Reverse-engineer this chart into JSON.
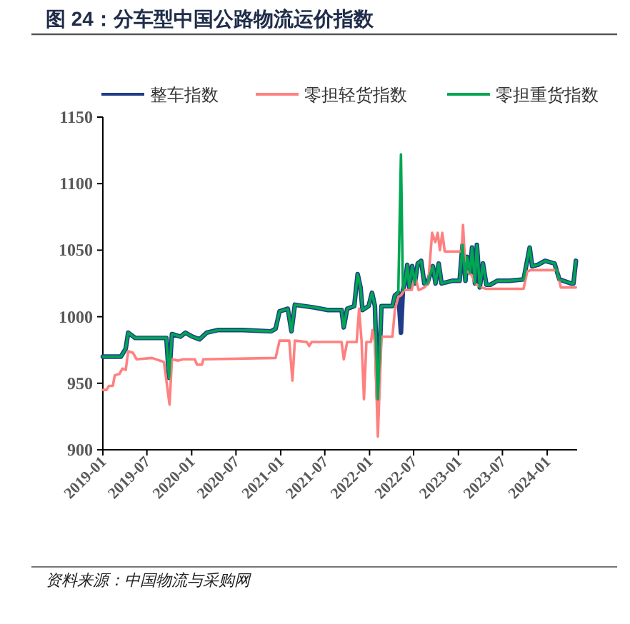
{
  "chart_data": {
    "type": "line",
    "title": "图 24：分车型中国公路物流运价指数",
    "annotations": [
      "资料来源：中国物流与采购网"
    ],
    "xlim": [
      "2019-01-01",
      "2024-05-03"
    ],
    "xticks": [
      "2019-01",
      "2019-07",
      "2020-01",
      "2020-07",
      "2021-01",
      "2021-07",
      "2022-01",
      "2022-07",
      "2023-01",
      "2023-07",
      "2024-01"
    ],
    "ylim": [
      900,
      1150
    ],
    "yticks": [
      900,
      950,
      1000,
      1050,
      1100,
      1150
    ],
    "grid": false,
    "legend": "top",
    "line_style": "solid",
    "marker": "none",
    "series": [
      {
        "name": "整车指数",
        "color": "#1f3c88",
        "x": [
          "2019-01-01",
          "2019-03-16",
          "2019-04-05",
          "2019-04-15",
          "2019-05-14",
          "2019-09-19",
          "2019-09-30",
          "2019-10-12",
          "2019-11-16",
          "2019-12-06",
          "2020-01-04",
          "2020-02-02",
          "2020-03-03",
          "2020-04-20",
          "2020-07-28",
          "2020-11-22",
          "2020-12-11",
          "2020-12-27",
          "2021-01-30",
          "2021-02-14",
          "2021-02-28",
          "2021-05-17",
          "2021-07-15",
          "2021-09-08",
          "2021-09-17",
          "2021-10-01",
          "2021-10-30",
          "2021-11-13",
          "2021-11-25",
          "2021-12-03",
          "2021-12-28",
          "2022-01-11",
          "2022-01-23",
          "2022-02-04",
          "2022-02-19",
          "2022-04-05",
          "2022-04-15",
          "2022-04-29",
          "2022-05-10",
          "2022-05-18",
          "2022-05-28",
          "2022-06-05",
          "2022-06-13",
          "2022-06-25",
          "2022-07-06",
          "2022-07-18",
          "2022-08-01",
          "2022-08-14",
          "2022-08-26",
          "2022-09-18",
          "2022-09-29",
          "2022-10-12",
          "2022-10-24",
          "2022-12-06",
          "2023-01-06",
          "2023-01-18",
          "2023-01-30",
          "2023-02-06",
          "2023-02-18",
          "2023-02-26",
          "2023-03-10",
          "2023-03-18",
          "2023-03-30",
          "2023-04-12",
          "2023-04-26",
          "2023-05-12",
          "2023-06-10",
          "2023-07-29",
          "2023-09-26",
          "2023-10-21",
          "2023-10-31",
          "2023-11-24",
          "2023-12-23",
          "2024-01-31",
          "2024-02-20",
          "2024-04-08",
          "2024-04-18",
          "2024-04-28"
        ],
        "values": [
          970,
          970,
          976,
          988,
          984,
          984,
          954,
          987,
          985,
          988,
          985,
          983,
          988,
          990,
          990,
          989,
          991,
          1004,
          1006,
          989,
          1009,
          1007,
          1005,
          1005,
          992,
          1006,
          1008,
          1032,
          1022,
          1005,
          1008,
          1018,
          1008,
          938,
          1008,
          1008,
          1016,
          1018,
          988,
          1020,
          1027,
          1039,
          1022,
          1038,
          1025,
          1040,
          1042,
          1025,
          1025,
          1038,
          1025,
          1040,
          1025,
          1027,
          1027,
          1054,
          1027,
          1045,
          1033,
          1052,
          1025,
          1054,
          1022,
          1040,
          1024,
          1024,
          1027,
          1027,
          1028,
          1052,
          1038,
          1039,
          1042,
          1040,
          1028,
          1025,
          1025,
          1042
        ]
      },
      {
        "name": "零担轻货指数",
        "color": "#ff8080",
        "x": [
          "2019-01-01",
          "2019-01-16",
          "2019-01-26",
          "2019-02-11",
          "2019-02-19",
          "2019-03-10",
          "2019-03-22",
          "2019-04-05",
          "2019-04-15",
          "2019-05-04",
          "2019-05-20",
          "2019-07-22",
          "2019-09-09",
          "2019-10-02",
          "2019-10-12",
          "2019-11-06",
          "2019-11-26",
          "2020-01-14",
          "2020-01-23",
          "2020-02-12",
          "2020-02-18",
          "2020-12-11",
          "2020-12-27",
          "2021-02-05",
          "2021-02-18",
          "2021-02-28",
          "2021-04-18",
          "2021-04-28",
          "2021-05-08",
          "2021-09-08",
          "2021-09-17",
          "2021-10-01",
          "2021-11-09",
          "2021-11-19",
          "2021-11-29",
          "2021-12-09",
          "2021-12-19",
          "2022-01-07",
          "2022-01-13",
          "2022-01-23",
          "2022-02-04",
          "2022-02-19",
          "2022-04-05",
          "2022-04-15",
          "2022-04-29",
          "2022-05-10",
          "2022-05-24",
          "2022-06-23",
          "2022-07-06",
          "2022-07-22",
          "2022-08-14",
          "2022-08-30",
          "2022-09-15",
          "2022-09-28",
          "2022-10-08",
          "2022-10-17",
          "2022-10-27",
          "2022-11-06",
          "2023-01-14",
          "2023-01-20",
          "2023-01-30",
          "2023-02-06",
          "2023-02-26",
          "2023-03-10",
          "2023-04-03",
          "2023-04-26",
          "2023-09-26",
          "2023-10-11",
          "2023-10-25",
          "2024-02-10",
          "2024-02-26",
          "2024-04-28"
        ],
        "values": [
          945,
          945,
          948,
          948,
          956,
          957,
          961,
          960,
          974,
          973,
          968,
          969,
          966,
          934,
          968,
          967,
          968,
          968,
          964,
          964,
          968,
          969,
          982,
          982,
          952,
          982,
          981,
          978,
          981,
          981,
          968,
          981,
          981,
          1006,
          982,
          938,
          981,
          981,
          990,
          981,
          910,
          985,
          985,
          1005,
          1015,
          1016,
          1020,
          1020,
          1031,
          1020,
          1022,
          1025,
          1063,
          1056,
          1063,
          1050,
          1063,
          1049,
          1049,
          1069,
          1036,
          1034,
          1031,
          1025,
          1022,
          1021,
          1021,
          1034,
          1035,
          1035,
          1022,
          1022
        ]
      },
      {
        "name": "零担重货指数",
        "color": "#00a651",
        "x": [
          "2019-01-01",
          "2019-03-16",
          "2019-04-05",
          "2019-04-15",
          "2019-05-14",
          "2019-09-19",
          "2019-09-30",
          "2019-10-12",
          "2019-11-16",
          "2019-12-06",
          "2020-01-04",
          "2020-02-02",
          "2020-03-03",
          "2020-04-20",
          "2020-07-28",
          "2020-11-22",
          "2020-12-11",
          "2020-12-27",
          "2021-01-30",
          "2021-02-14",
          "2021-02-28",
          "2021-05-17",
          "2021-07-15",
          "2021-09-08",
          "2021-09-17",
          "2021-10-01",
          "2021-10-30",
          "2021-11-13",
          "2021-11-25",
          "2021-12-03",
          "2021-12-28",
          "2022-01-11",
          "2022-01-23",
          "2022-02-04",
          "2022-02-19",
          "2022-04-05",
          "2022-04-15",
          "2022-04-29",
          "2022-05-10",
          "2022-05-18",
          "2022-05-28",
          "2022-06-05",
          "2022-06-13",
          "2022-06-25",
          "2022-07-06",
          "2022-07-18",
          "2022-08-01",
          "2022-08-14",
          "2022-08-26",
          "2022-09-18",
          "2022-09-29",
          "2022-10-12",
          "2022-10-24",
          "2022-12-06",
          "2023-01-06",
          "2023-01-18",
          "2023-01-30",
          "2023-02-06",
          "2023-02-18",
          "2023-02-26",
          "2023-03-10",
          "2023-03-18",
          "2023-03-30",
          "2023-04-12",
          "2023-04-26",
          "2023-05-12",
          "2023-06-10",
          "2023-07-29",
          "2023-09-26",
          "2023-10-21",
          "2023-10-31",
          "2023-11-24",
          "2023-12-23",
          "2024-01-31",
          "2024-02-20",
          "2024-04-08",
          "2024-04-18",
          "2024-04-28"
        ],
        "values": [
          970,
          970,
          976,
          988,
          984,
          984,
          954,
          987,
          985,
          988,
          985,
          983,
          988,
          990,
          990,
          989,
          991,
          1004,
          1006,
          989,
          1009,
          1007,
          1005,
          1005,
          992,
          1006,
          1008,
          1032,
          1022,
          1005,
          1008,
          1018,
          1008,
          938,
          1008,
          1008,
          1016,
          1018,
          1122,
          1020,
          1027,
          1039,
          1022,
          1038,
          1025,
          1040,
          1042,
          1025,
          1025,
          1038,
          1025,
          1040,
          1025,
          1027,
          1027,
          1054,
          1027,
          1045,
          1033,
          1052,
          1025,
          1054,
          1022,
          1040,
          1024,
          1024,
          1027,
          1027,
          1028,
          1052,
          1038,
          1039,
          1042,
          1040,
          1028,
          1025,
          1025,
          1042
        ]
      }
    ]
  }
}
